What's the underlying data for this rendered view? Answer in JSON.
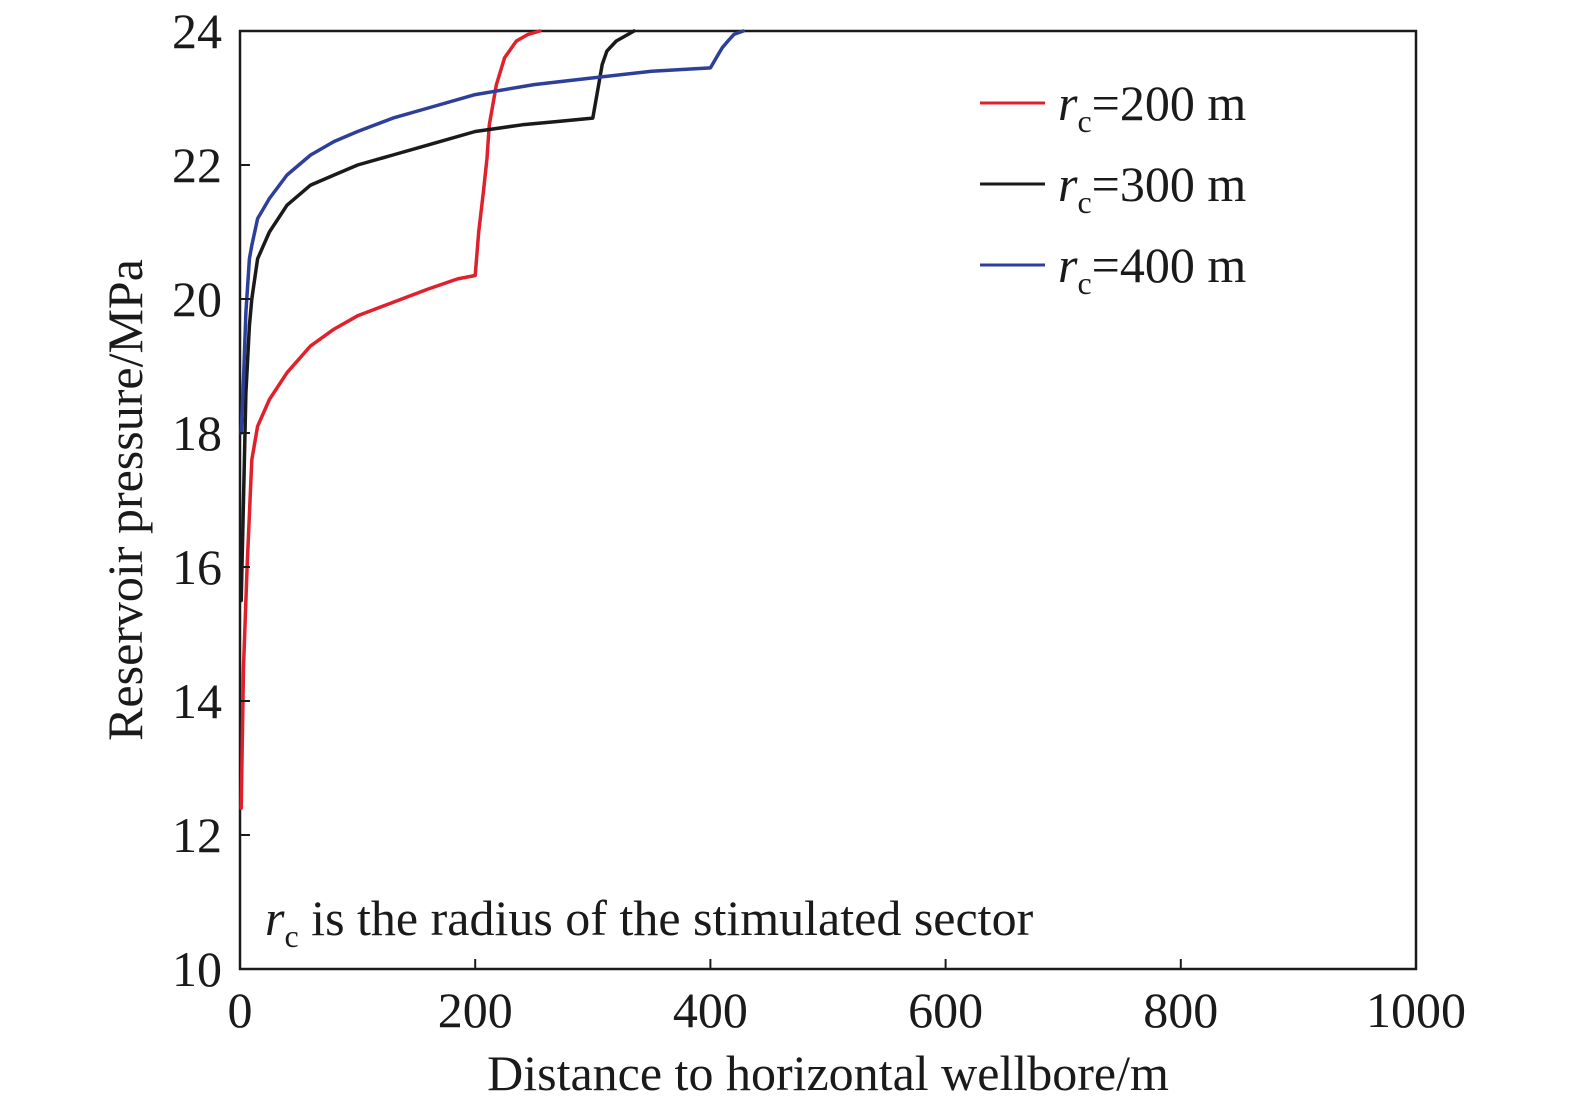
{
  "chart_data": {
    "type": "line",
    "xlabel": "Distance to horizontal wellbore/m",
    "ylabel": "Reservoir pressure/MPa",
    "xlim": [
      0,
      1000
    ],
    "ylim": [
      10,
      24
    ],
    "x_ticks": [
      "0",
      "200",
      "400",
      "600",
      "800",
      "1000"
    ],
    "y_ticks": [
      "10",
      "12",
      "14",
      "16",
      "18",
      "20",
      "22",
      "24"
    ],
    "grid": false,
    "legend_position": "top-right",
    "annotation": {
      "symbol": "r",
      "subscript": "c",
      "text": " is the radius of the stimulated sector"
    },
    "series": [
      {
        "name": "rc=200 m",
        "symbol": "r",
        "subscript": "c",
        "suffix": "=200 m",
        "color": "#e0202a",
        "x": [
          1,
          3,
          6,
          10,
          15,
          25,
          40,
          60,
          80,
          100,
          130,
          160,
          185,
          200,
          203,
          207,
          210,
          212,
          218,
          225,
          235,
          245,
          255
        ],
        "y": [
          12.4,
          14.5,
          16.0,
          17.6,
          18.1,
          18.5,
          18.9,
          19.3,
          19.55,
          19.75,
          19.95,
          20.15,
          20.3,
          20.35,
          21.0,
          21.6,
          22.1,
          22.6,
          23.2,
          23.6,
          23.85,
          23.95,
          24.0
        ]
      },
      {
        "name": "rc=300 m",
        "symbol": "r",
        "subscript": "c",
        "suffix": "=300 m",
        "color": "#1a1a1a",
        "x": [
          1,
          3,
          5,
          8,
          10,
          15,
          25,
          40,
          60,
          80,
          100,
          130,
          160,
          200,
          240,
          270,
          300,
          305,
          308,
          312,
          320,
          330,
          335
        ],
        "y": [
          15.5,
          17.0,
          18.6,
          19.6,
          20.0,
          20.6,
          21.0,
          21.4,
          21.7,
          21.85,
          22.0,
          22.15,
          22.3,
          22.5,
          22.6,
          22.65,
          22.7,
          23.2,
          23.5,
          23.7,
          23.85,
          23.95,
          24.0
        ]
      },
      {
        "name": "rc=400 m",
        "symbol": "r",
        "subscript": "c",
        "suffix": "=400 m",
        "color": "#2e3f9a",
        "x": [
          1,
          3,
          5,
          8,
          10,
          15,
          25,
          40,
          60,
          80,
          100,
          130,
          160,
          200,
          250,
          300,
          350,
          400,
          405,
          410,
          415,
          420,
          428
        ],
        "y": [
          18.0,
          18.8,
          19.8,
          20.6,
          20.8,
          21.2,
          21.5,
          21.85,
          22.15,
          22.35,
          22.5,
          22.7,
          22.85,
          23.05,
          23.2,
          23.3,
          23.4,
          23.45,
          23.6,
          23.75,
          23.85,
          23.95,
          24.0
        ]
      }
    ]
  }
}
